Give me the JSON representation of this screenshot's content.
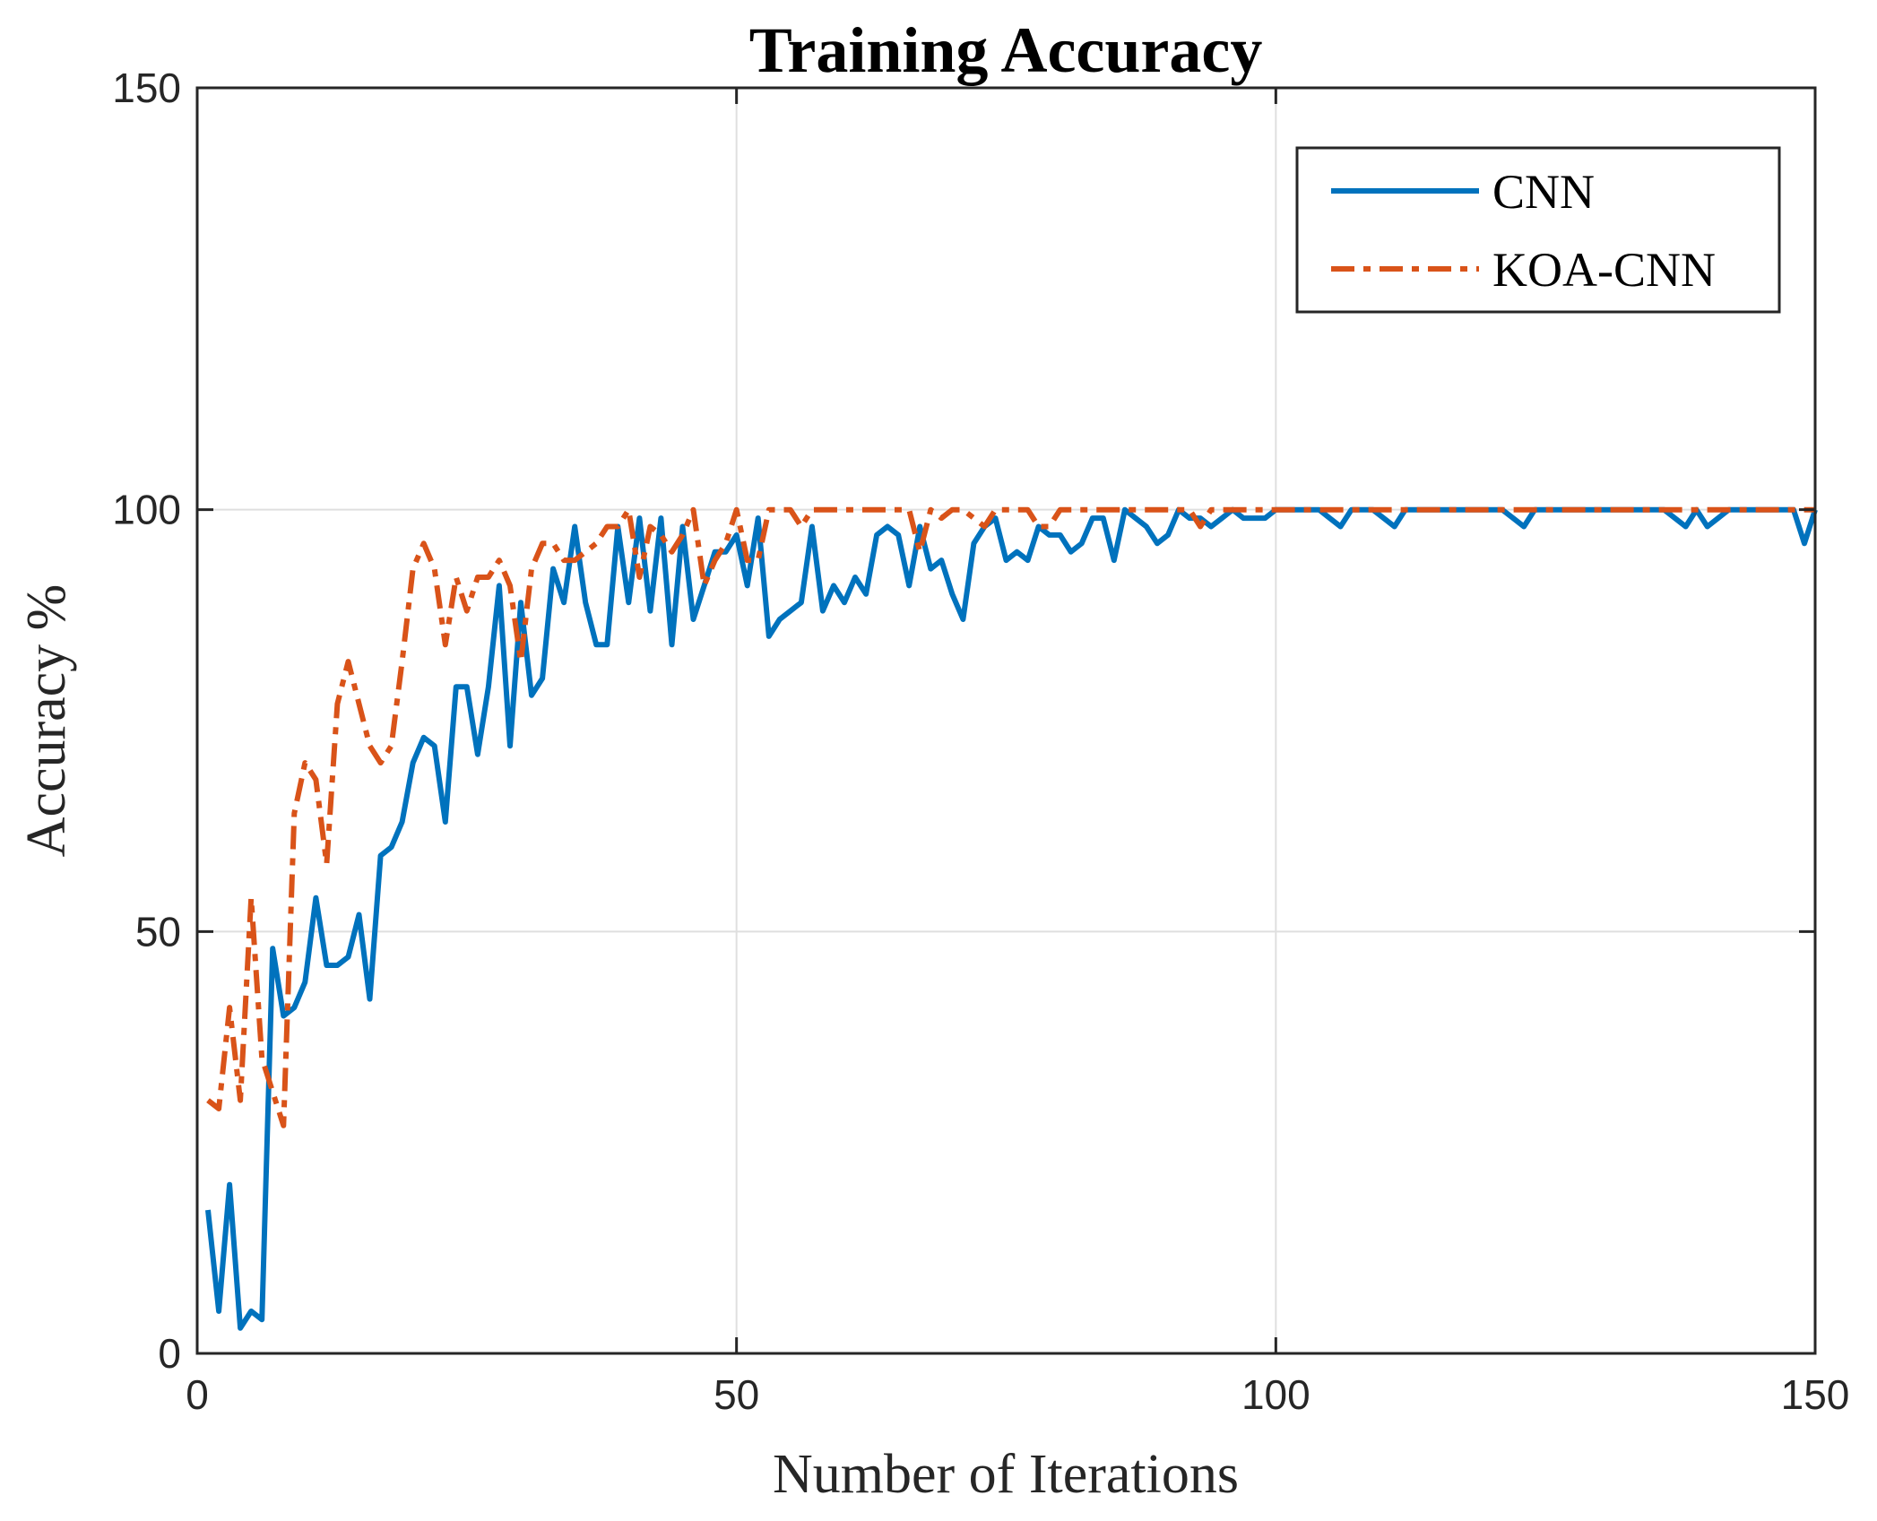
{
  "chart_data": {
    "type": "line",
    "title": "Training Accuracy",
    "xlabel": "Number of Iterations",
    "ylabel": "Accuracy %",
    "xlim": [
      0,
      150
    ],
    "ylim": [
      0,
      150
    ],
    "xticks": [
      0,
      50,
      100,
      150
    ],
    "yticks": [
      0,
      50,
      100,
      150
    ],
    "xtick_labels": [
      "0",
      "50",
      "100",
      "150"
    ],
    "ytick_labels": [
      "0",
      "50",
      "100",
      "150"
    ],
    "grid": true,
    "legend_position": "top-right",
    "series": [
      {
        "name": "CNN",
        "color": "#0072BD",
        "style": "solid",
        "x": [
          1,
          2,
          3,
          4,
          5,
          6,
          7,
          8,
          9,
          10,
          11,
          12,
          13,
          14,
          15,
          16,
          17,
          18,
          19,
          20,
          21,
          22,
          23,
          24,
          25,
          26,
          27,
          28,
          29,
          30,
          31,
          32,
          33,
          34,
          35,
          36,
          37,
          38,
          39,
          40,
          41,
          42,
          43,
          44,
          45,
          46,
          47,
          48,
          49,
          50,
          51,
          52,
          53,
          54,
          55,
          56,
          57,
          58,
          59,
          60,
          61,
          62,
          63,
          64,
          65,
          66,
          67,
          68,
          69,
          70,
          71,
          72,
          73,
          74,
          75,
          76,
          77,
          78,
          79,
          80,
          81,
          82,
          83,
          84,
          85,
          86,
          87,
          88,
          89,
          90,
          91,
          92,
          93,
          94,
          95,
          96,
          97,
          98,
          99,
          100,
          101,
          102,
          103,
          104,
          105,
          106,
          107,
          108,
          109,
          110,
          111,
          112,
          113,
          114,
          115,
          116,
          117,
          118,
          119,
          120,
          121,
          122,
          123,
          124,
          125,
          126,
          127,
          128,
          129,
          130,
          131,
          132,
          133,
          134,
          135,
          136,
          137,
          138,
          139,
          140,
          141,
          142,
          143,
          144,
          145,
          146,
          147,
          148,
          149,
          150
        ],
        "values": [
          17,
          5,
          20,
          3,
          5,
          4,
          48,
          40,
          41,
          44,
          54,
          46,
          46,
          47,
          52,
          42,
          59,
          60,
          63,
          70,
          73,
          72,
          63,
          79,
          79,
          71,
          79,
          91,
          72,
          89,
          78,
          80,
          93,
          89,
          98,
          89,
          84,
          84,
          98,
          89,
          99,
          88,
          99,
          84,
          98,
          87,
          91,
          95,
          95,
          97,
          91,
          99,
          85,
          87,
          88,
          89,
          98,
          88,
          91,
          89,
          92,
          90,
          97,
          98,
          97,
          91,
          98,
          93,
          94,
          90,
          87,
          96,
          98,
          99,
          94,
          95,
          94,
          98,
          97,
          97,
          95,
          96,
          99,
          99,
          94,
          100,
          99,
          98,
          96,
          97,
          100,
          99,
          99,
          98,
          99,
          100,
          99,
          99,
          99,
          100,
          100,
          100,
          100,
          100,
          99,
          98,
          100,
          100,
          100,
          99,
          98,
          100,
          100,
          100,
          100,
          100,
          100,
          100,
          100,
          100,
          100,
          99,
          98,
          100,
          100,
          100,
          100,
          100,
          100,
          100,
          100,
          100,
          100,
          100,
          100,
          100,
          99,
          98,
          100,
          98,
          99,
          100,
          100,
          100,
          100,
          100,
          100,
          100,
          96,
          100
        ]
      },
      {
        "name": "KOA-CNN",
        "color": "#D95319",
        "style": "dashdot",
        "x": [
          1,
          2,
          3,
          4,
          5,
          6,
          7,
          8,
          9,
          10,
          11,
          12,
          13,
          14,
          15,
          16,
          17,
          18,
          19,
          20,
          21,
          22,
          23,
          24,
          25,
          26,
          27,
          28,
          29,
          30,
          31,
          32,
          33,
          34,
          35,
          36,
          37,
          38,
          39,
          40,
          41,
          42,
          43,
          44,
          45,
          46,
          47,
          48,
          49,
          50,
          51,
          52,
          53,
          54,
          55,
          56,
          57,
          58,
          59,
          60,
          61,
          62,
          63,
          64,
          65,
          66,
          67,
          68,
          69,
          70,
          71,
          72,
          73,
          74,
          75,
          76,
          77,
          78,
          79,
          80,
          81,
          82,
          83,
          84,
          85,
          86,
          87,
          88,
          89,
          90,
          91,
          92,
          93,
          94,
          95,
          96,
          97,
          98,
          99,
          100,
          101,
          102,
          103,
          104,
          105,
          106,
          107,
          108,
          109,
          110,
          111,
          112,
          113,
          114,
          115,
          116,
          117,
          118,
          119,
          120,
          121,
          122,
          123,
          124,
          125,
          126,
          127,
          128,
          129,
          130,
          131,
          132,
          133,
          134,
          135,
          136,
          137,
          138,
          139,
          140,
          141,
          142,
          143,
          144,
          145,
          146,
          147,
          148,
          149,
          150
        ],
        "values": [
          30,
          29,
          41,
          30,
          54,
          35,
          31,
          27,
          64,
          70,
          68,
          58,
          77,
          82,
          77,
          72,
          70,
          72,
          82,
          93,
          96,
          93,
          84,
          92,
          88,
          92,
          92,
          94,
          91,
          82,
          93,
          96,
          96,
          94,
          94,
          95,
          96,
          98,
          98,
          100,
          92,
          98,
          97,
          95,
          97,
          100,
          91,
          94,
          96,
          100,
          94,
          94,
          100,
          100,
          100,
          98,
          100,
          100,
          100,
          100,
          100,
          100,
          100,
          100,
          100,
          100,
          95,
          100,
          99,
          100,
          100,
          99,
          98,
          100,
          100,
          100,
          100,
          98,
          98,
          100,
          100,
          100,
          100,
          100,
          100,
          100,
          100,
          100,
          100,
          100,
          100,
          100,
          98,
          100,
          100,
          100,
          100,
          100,
          100,
          100,
          100,
          100,
          100,
          100,
          100,
          100,
          100,
          100,
          100,
          100,
          100,
          100,
          100,
          100,
          100,
          100,
          100,
          100,
          100,
          100,
          100,
          100,
          100,
          100,
          100,
          100,
          100,
          100,
          100,
          100,
          100,
          100,
          100,
          100,
          100,
          100,
          100,
          100,
          100,
          100,
          100,
          100,
          100,
          100,
          100,
          100,
          100,
          100,
          100,
          100
        ]
      }
    ]
  }
}
